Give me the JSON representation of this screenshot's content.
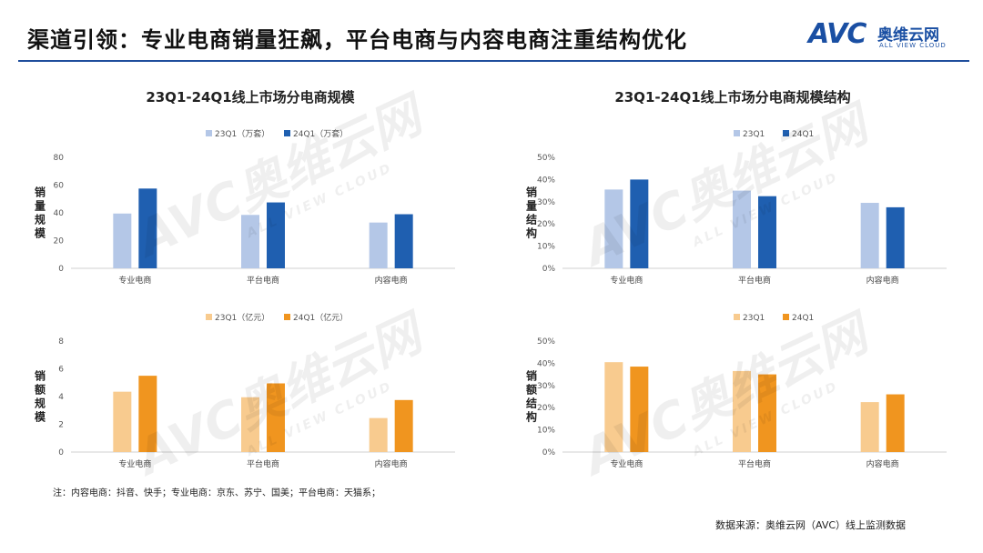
{
  "header": {
    "title": "渠道引领：专业电商销量狂飙，平台电商与内容电商注重结构优化",
    "logo_mark": "AVC",
    "logo_cn": "奥维云网",
    "logo_en": "ALL VIEW CLOUD"
  },
  "panels": {
    "left_title": "23Q1-24Q1线上市场分电商规模",
    "right_title": "23Q1-24Q1线上市场分电商规模结构"
  },
  "colors": {
    "blue_light": "#b4c7e7",
    "blue_dark": "#1f5fb0",
    "orange_light": "#f8cb8f",
    "orange_dark": "#f0951f",
    "title_rule": "#1f4e9c"
  },
  "watermark": {
    "main": "AVC奥维云网",
    "sub": "ALL VIEW CLOUD"
  },
  "footnote": "注：内容电商：抖音、快手；专业电商：京东、苏宁、国美；平台电商：天猫系；",
  "source": "数据来源：奥维云网（AVC）线上监测数据",
  "chart_data": [
    {
      "id": "sales-volume",
      "type": "bar",
      "ylabel": "销量规模",
      "categories": [
        "专业电商",
        "平台电商",
        "内容电商"
      ],
      "series": [
        {
          "name": "23Q1（万套）",
          "values": [
            39.5,
            38.5,
            33
          ],
          "color": "#b4c7e7"
        },
        {
          "name": "24Q1（万套）",
          "values": [
            57.5,
            47.5,
            39
          ],
          "color": "#1f5fb0"
        }
      ],
      "ylim": [
        0,
        80
      ],
      "yticks": [
        0,
        20,
        40,
        60,
        80
      ],
      "tick_format": "int",
      "legend": "top"
    },
    {
      "id": "sales-volume-share",
      "type": "bar",
      "ylabel": "销量结构",
      "categories": [
        "专业电商",
        "平台电商",
        "内容电商"
      ],
      "series": [
        {
          "name": "23Q1",
          "values": [
            0.355,
            0.35,
            0.295
          ],
          "color": "#b4c7e7"
        },
        {
          "name": "24Q1",
          "values": [
            0.4,
            0.325,
            0.275
          ],
          "color": "#1f5fb0"
        }
      ],
      "ylim": [
        0,
        0.5
      ],
      "yticks": [
        0,
        0.1,
        0.2,
        0.3,
        0.4,
        0.5
      ],
      "tick_format": "pct",
      "legend": "top"
    },
    {
      "id": "sales-amount",
      "type": "bar",
      "ylabel": "销额规模",
      "categories": [
        "专业电商",
        "平台电商",
        "内容电商"
      ],
      "series": [
        {
          "name": "23Q1（亿元）",
          "values": [
            4.35,
            3.95,
            2.45
          ],
          "color": "#f8cb8f"
        },
        {
          "name": "24Q1（亿元）",
          "values": [
            5.5,
            4.95,
            3.75
          ],
          "color": "#f0951f"
        }
      ],
      "ylim": [
        0,
        8
      ],
      "yticks": [
        0,
        2,
        4,
        6,
        8
      ],
      "tick_format": "int",
      "legend": "top"
    },
    {
      "id": "sales-amount-share",
      "type": "bar",
      "ylabel": "销额结构",
      "categories": [
        "专业电商",
        "平台电商",
        "内容电商"
      ],
      "series": [
        {
          "name": "23Q1",
          "values": [
            0.405,
            0.365,
            0.225
          ],
          "color": "#f8cb8f"
        },
        {
          "name": "24Q1",
          "values": [
            0.385,
            0.35,
            0.26
          ],
          "color": "#f0951f"
        }
      ],
      "ylim": [
        0,
        0.5
      ],
      "yticks": [
        0,
        0.1,
        0.2,
        0.3,
        0.4,
        0.5
      ],
      "tick_format": "pct",
      "legend": "top"
    }
  ]
}
